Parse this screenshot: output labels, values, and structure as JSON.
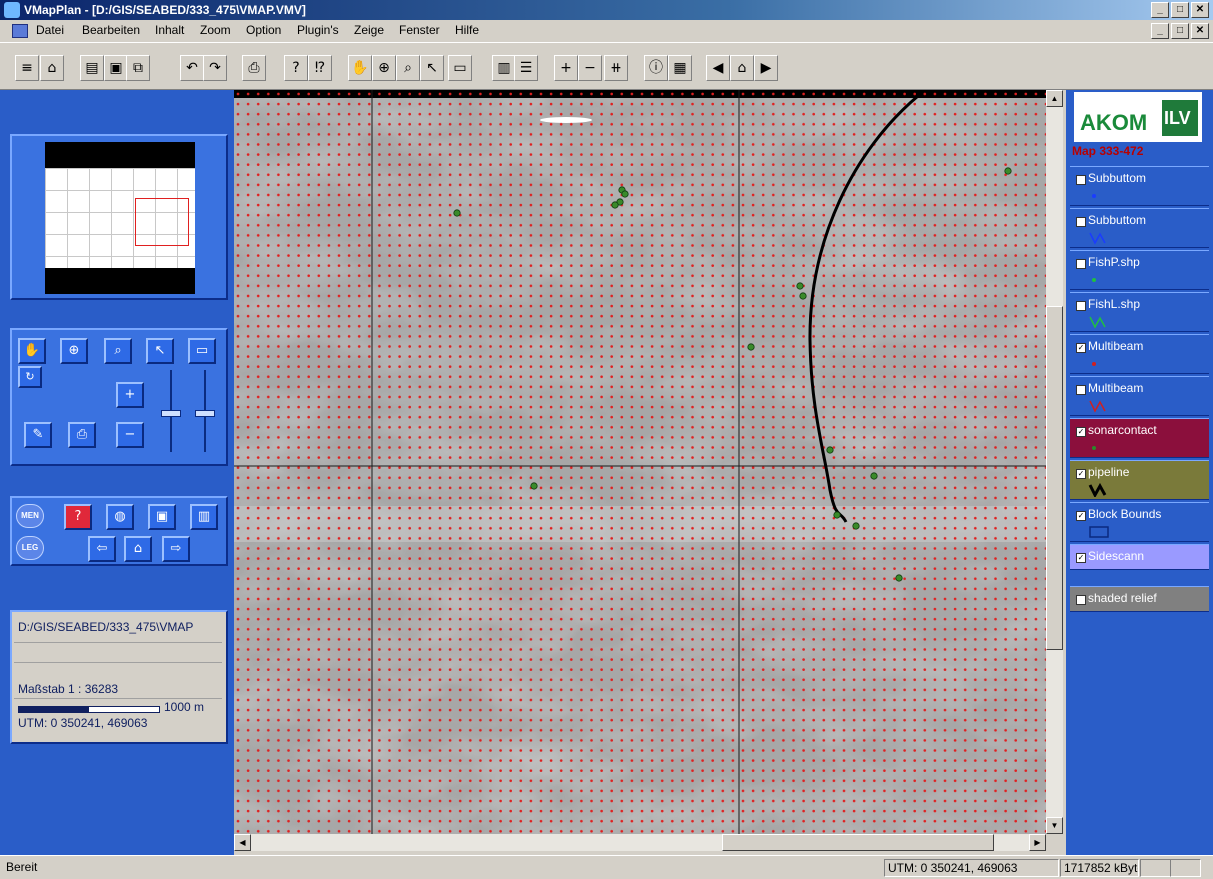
{
  "window": {
    "title": "VMapPlan - [D:/GIS/SEABED/333_475\\VMAP.VMV]",
    "buttons": [
      "_",
      "□",
      "✕"
    ]
  },
  "menu": [
    "Datei",
    "Bearbeiten",
    "Inhalt",
    "Zoom",
    "Option",
    "Plugin's",
    "Zeige",
    "Fenster",
    "Hilfe"
  ],
  "toolbar": {
    "icons": [
      "layers-icon",
      "binoculars-icon",
      "open-folder-icon",
      "save-icon",
      "copy-icon",
      "undo-icon",
      "redo-icon",
      "print-icon",
      "help-icon",
      "whats-this-icon",
      "pan-hand-icon",
      "zoom-in-icon",
      "zoom-icon",
      "select-arrow-icon",
      "measure-ruler-icon",
      "panel-left-icon",
      "panel-list-icon",
      "plus-icon",
      "minus-icon",
      "fit-extent-icon",
      "info-icon",
      "table-icon",
      "back-icon",
      "home-icon",
      "forward-icon"
    ],
    "glyphs": [
      "≡",
      "⌂",
      "▤",
      "▣",
      "⧉",
      "↶",
      "↷",
      "⎙",
      "?",
      "⁉",
      "✋",
      "⊕",
      "⌕",
      "↖",
      "▭",
      "▥",
      "☰",
      "+",
      "−",
      "⧺",
      "ⓘ",
      "▦",
      "◀",
      "⌂",
      "▶"
    ]
  },
  "left_panel": {
    "tools": [
      "pan-hand-icon",
      "zoom-in-icon",
      "zoom-icon",
      "select-arrow-icon",
      "measure-ruler-icon"
    ],
    "tool_glyphs": [
      "✋",
      "⊕",
      "⌕",
      "↖",
      "▭"
    ],
    "plus_label": "+",
    "minus_label": "−",
    "round_buttons": [
      "MEN",
      "LEG"
    ],
    "info": {
      "path": "D:/GIS/SEABED/333_475\\VMAP",
      "scale": "Maßstab 1 : 36283",
      "scalebar": "1000 m",
      "utm": "UTM: 0  350241,  469063"
    }
  },
  "right_panel": {
    "logo_left": "AKOM",
    "logo_right": "ILV",
    "map_label": "Map 333-472",
    "layers": [
      {
        "name": "Subbuttom",
        "checked": false,
        "bg": "#2a5dc8",
        "symbol": "point",
        "color": "#1a3cff"
      },
      {
        "name": "Subbuttom",
        "checked": false,
        "bg": "#2a5dc8",
        "symbol": "line",
        "color": "#1a3cff"
      },
      {
        "name": "FishP.shp",
        "checked": false,
        "bg": "#2a5dc8",
        "symbol": "point",
        "color": "#20c040"
      },
      {
        "name": "FishL.shp",
        "checked": false,
        "bg": "#2a5dc8",
        "symbol": "line",
        "color": "#20c040"
      },
      {
        "name": "Multibeam",
        "checked": true,
        "bg": "#2a5dc8",
        "symbol": "point",
        "color": "#d02020"
      },
      {
        "name": "Multibeam",
        "checked": false,
        "bg": "#2a5dc8",
        "symbol": "line",
        "color": "#d02020"
      },
      {
        "name": "sonarcontact",
        "checked": true,
        "bg": "#8b0f3c",
        "symbol": "point",
        "color": "#2a8a2a"
      },
      {
        "name": "pipeline",
        "checked": true,
        "bg": "#7a7a3a",
        "symbol": "line",
        "color": "#000000"
      },
      {
        "name": "Block Bounds",
        "checked": true,
        "bg": "#2a5dc8",
        "symbol": "rect",
        "color": "#0a2a80"
      },
      {
        "name": "Sidescann",
        "checked": true,
        "bg": "#9a9aff",
        "symbol": "none",
        "color": "#ffffff"
      },
      {
        "name": "shaded relief",
        "checked": false,
        "bg": "#808080",
        "symbol": "none",
        "color": "#ffffff"
      }
    ]
  },
  "status": {
    "ready": "Bereit",
    "utm": "UTM: 0  350241,  469063",
    "memory": "1717852 kByte"
  },
  "colors": {
    "panel_blue": "#2a5dc8",
    "grid_dot": "#e02020",
    "sonar_contact": "#3a8a2a",
    "pipeline": "#000000"
  }
}
